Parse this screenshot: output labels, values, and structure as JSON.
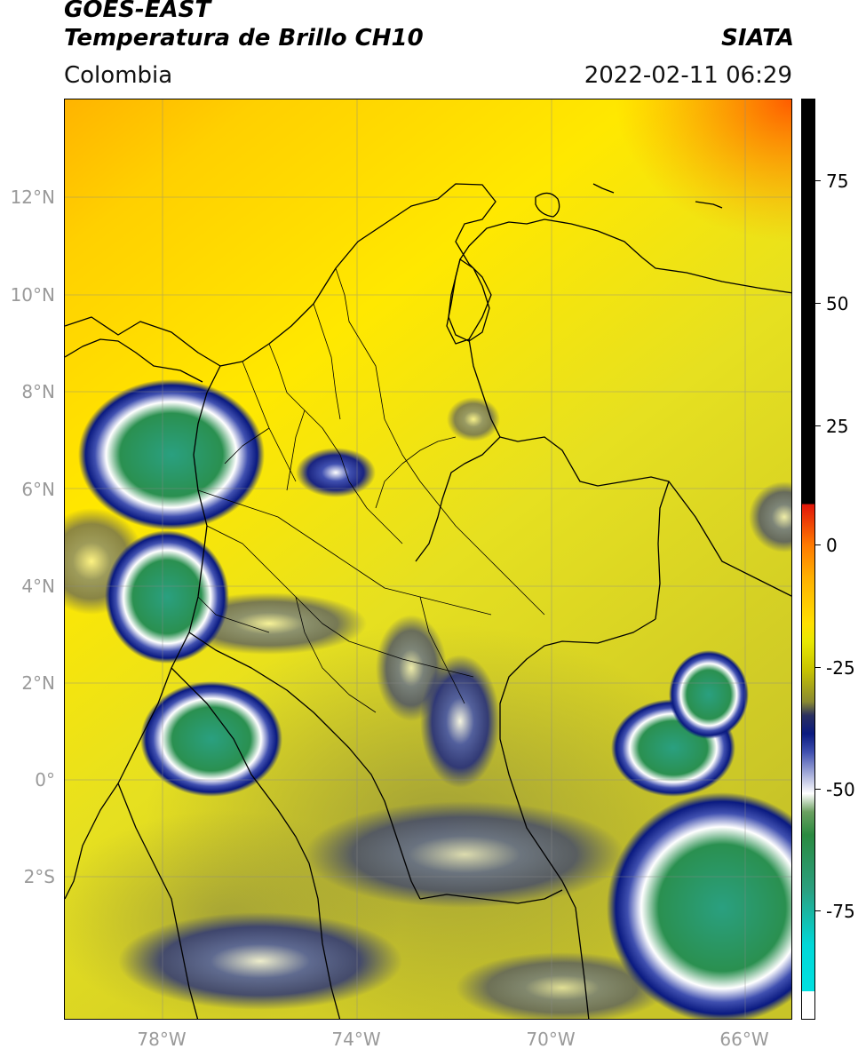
{
  "header": {
    "line1": "GOES-EAST",
    "line2": "Temperatura de Brillo CH10",
    "agency": "SIATA",
    "region": "Colombia",
    "timestamp": "2022-02-11 06:29"
  },
  "map": {
    "lat_ticks": [
      "12°N",
      "10°N",
      "8°N",
      "6°N",
      "4°N",
      "2°N",
      "0°",
      "2°S"
    ],
    "lon_ticks": [
      "78°W",
      "74°W",
      "70°W",
      "66°W"
    ],
    "extent": {
      "lon_min": -80,
      "lon_max": -65,
      "lat_min": -5,
      "lat_max": 14
    }
  },
  "colorbar": {
    "tick_labels": [
      "75",
      "50",
      "25",
      "0",
      "-25",
      "-50",
      "-75"
    ],
    "range": [
      -95,
      90
    ],
    "colors": {
      "warm": "#ffe000",
      "hot": "#ff6a00",
      "cold_blue": "#0a1a80",
      "cold_green": "#2a8a40",
      "coldest": "#00e0e0",
      "above": "#000000"
    }
  }
}
